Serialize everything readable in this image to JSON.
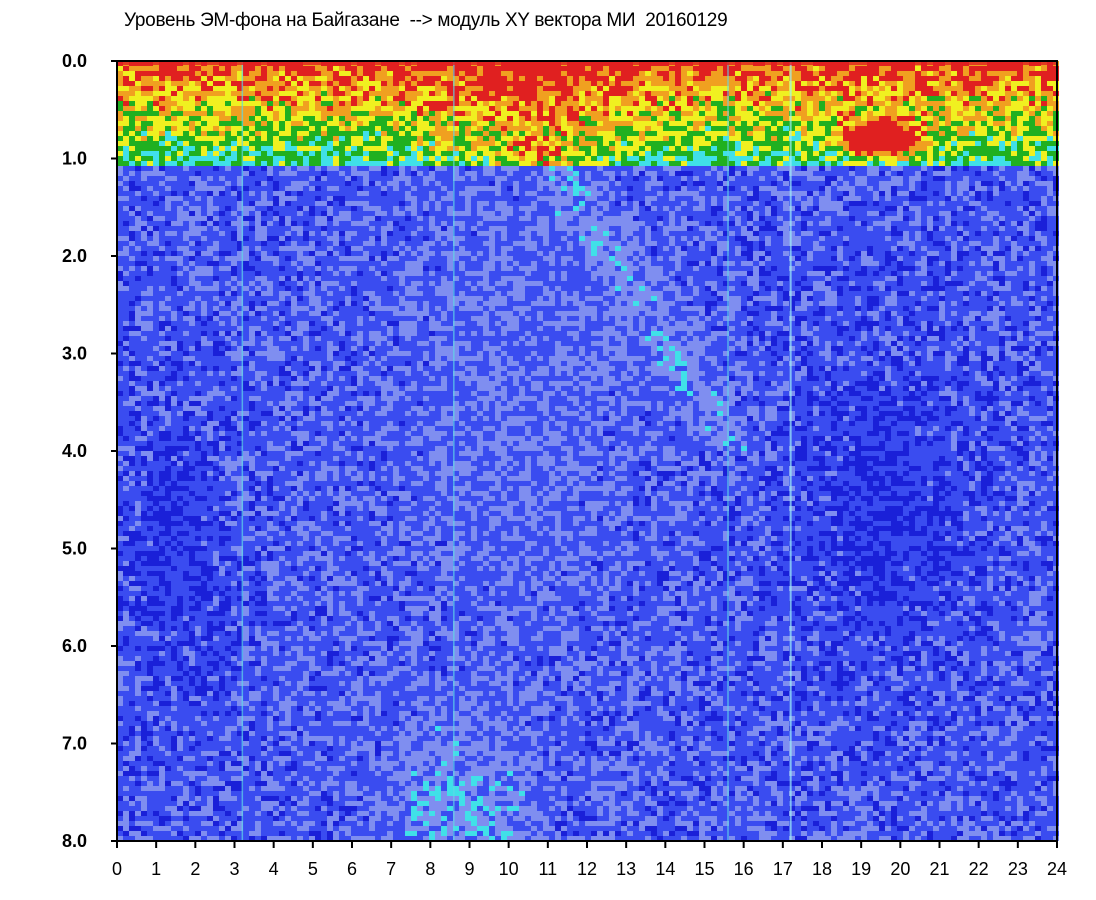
{
  "chart_data": {
    "type": "heatmap",
    "title": "Уровень ЭМ-фона на Байгазане  --> модуль XY вектора МИ  20160129",
    "xlabel": "",
    "ylabel": "",
    "xlim": [
      0,
      24
    ],
    "ylim": [
      0.0,
      8.0
    ],
    "y_inverted": true,
    "x_ticks": [
      "0",
      "1",
      "2",
      "3",
      "4",
      "5",
      "6",
      "7",
      "8",
      "9",
      "10",
      "11",
      "12",
      "13",
      "14",
      "15",
      "16",
      "17",
      "18",
      "19",
      "20",
      "21",
      "22",
      "23",
      "24"
    ],
    "y_ticks": [
      "0.0",
      "1.0",
      "2.0",
      "3.0",
      "4.0",
      "5.0",
      "6.0",
      "7.0",
      "8.0"
    ],
    "colormap": [
      "#1a20d8",
      "#3a4cf0",
      "#7f8ef0",
      "#40e0e8",
      "#20b020",
      "#f0f020",
      "#f0a020",
      "#e02020"
    ],
    "grid": false
  }
}
